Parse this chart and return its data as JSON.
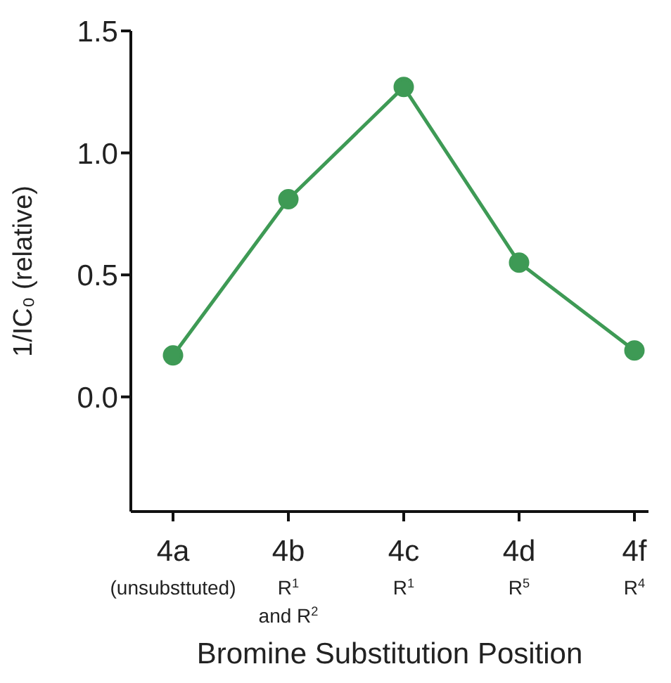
{
  "chart_data": {
    "type": "line",
    "xlabel": "Bromine Substitution Position",
    "ylabel": "1/IC₀ (relative)",
    "categories": [
      "4a\n(unsubsttuted)",
      "4b\nR$^{1}$\nand R$^{2}$",
      "4c\nR$^{1}$",
      "4d\nR$^{5}$",
      "4f\nR$^{4}$"
    ],
    "series": [
      {
        "color": "#3e9a55",
        "values": [
          0.17,
          0.81,
          1.27,
          0.55,
          0.19
        ]
      }
    ],
    "ylim": [
      -0.47,
      1.5
    ],
    "yticks": [
      {
        "value": 0,
        "label": "0.0"
      },
      0.5,
      {
        "value": 1,
        "label": "1.0"
      },
      1.5
    ],
    "grid": false,
    "legend": false,
    "marker": "circle",
    "line_style": "solid"
  }
}
